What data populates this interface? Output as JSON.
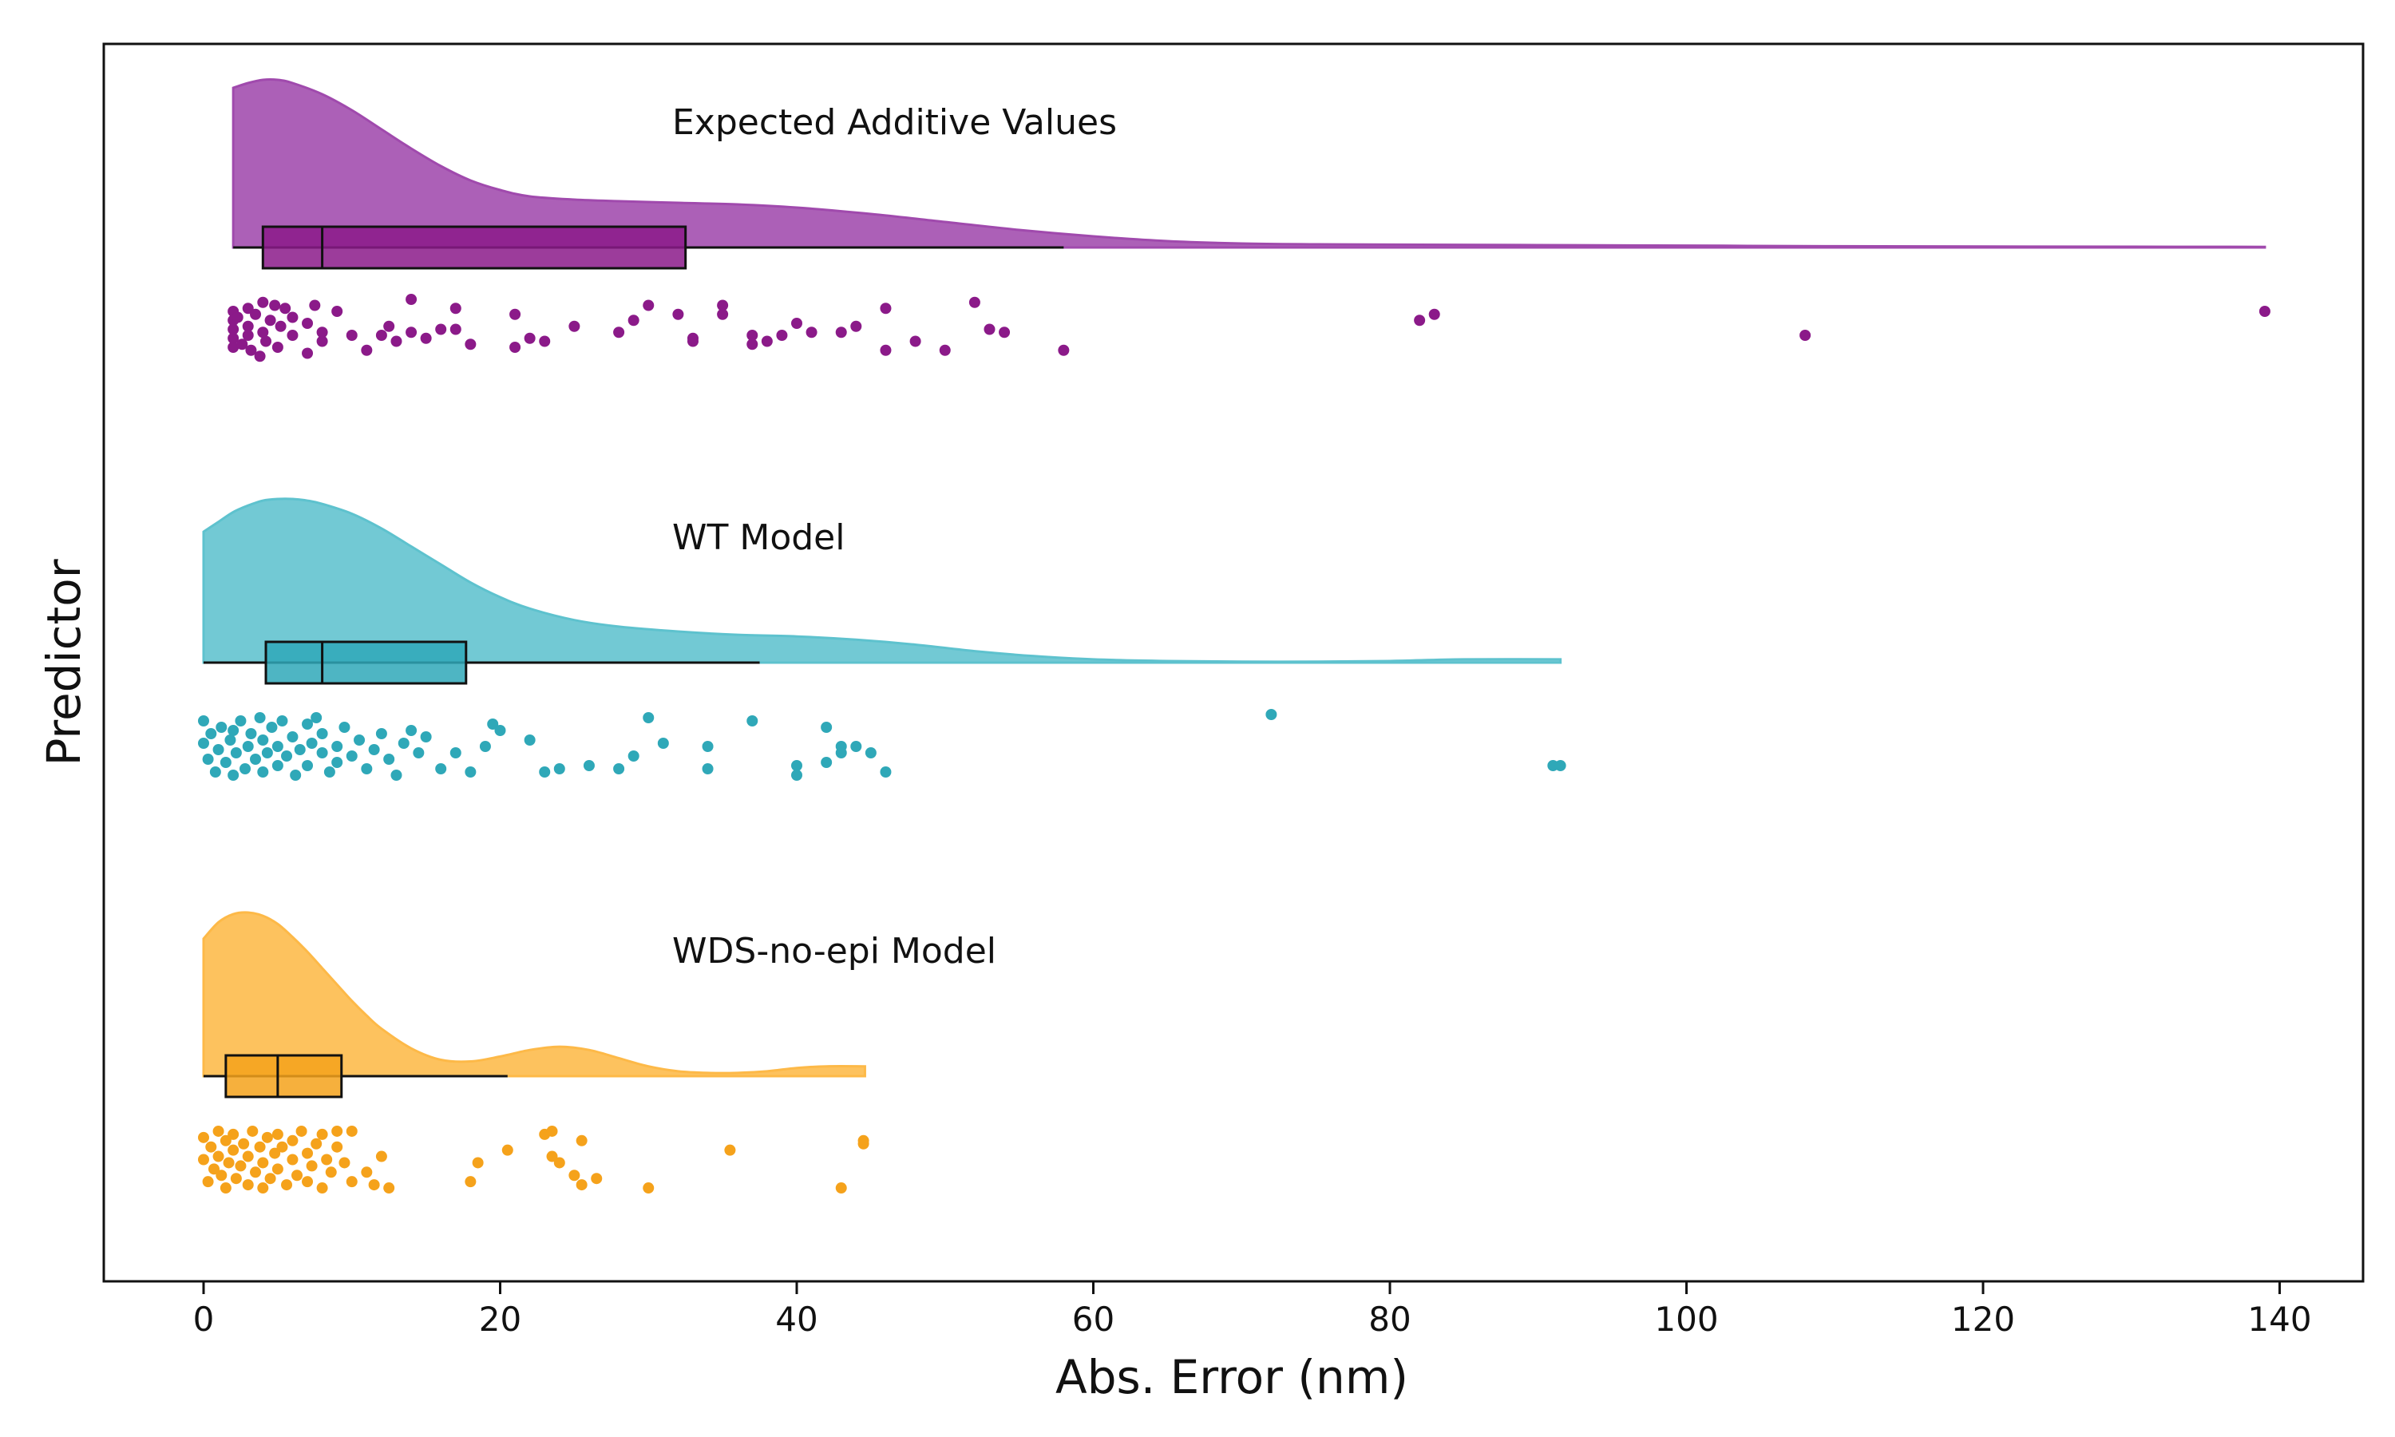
{
  "chart_data": {
    "type": "raincloud",
    "xlabel": "Abs. Error (nm)",
    "ylabel": "Predictor",
    "xlim": [
      -7,
      146
    ],
    "xticks": [
      0,
      20,
      40,
      60,
      80,
      100,
      120,
      140
    ],
    "grid": false,
    "series": [
      {
        "name": "Expected Additive Values",
        "color": "#8B1A89",
        "fill_color": "#A04AAD",
        "box": {
          "whisker_low": 2,
          "q1": 4,
          "median": 8,
          "q3": 32.5,
          "whisker_high": 58
        },
        "density": {
          "x": [
            2,
            3,
            4,
            5,
            6,
            8,
            10,
            12,
            14,
            16,
            18,
            20,
            22,
            25,
            28,
            32,
            36,
            40,
            45,
            50,
            55,
            60,
            65,
            70,
            75,
            80,
            90,
            100,
            110,
            120,
            130,
            139
          ],
          "y": [
            1.0,
            1.03,
            1.05,
            1.05,
            1.03,
            0.96,
            0.86,
            0.74,
            0.62,
            0.51,
            0.42,
            0.36,
            0.32,
            0.3,
            0.29,
            0.28,
            0.27,
            0.25,
            0.21,
            0.16,
            0.11,
            0.07,
            0.04,
            0.025,
            0.02,
            0.018,
            0.015,
            0.012,
            0.008,
            0.006,
            0.005,
            0.004
          ]
        },
        "points": [
          [
            2,
            0.2
          ],
          [
            2,
            0.35
          ],
          [
            2,
            0.5
          ],
          [
            2,
            0.65
          ],
          [
            2,
            0.8
          ],
          [
            2.3,
            0.3
          ],
          [
            2.6,
            0.75
          ],
          [
            3,
            0.15
          ],
          [
            3,
            0.45
          ],
          [
            3,
            0.6
          ],
          [
            3.2,
            0.85
          ],
          [
            3.5,
            0.25
          ],
          [
            3.8,
            0.95
          ],
          [
            4,
            0.05
          ],
          [
            4,
            0.55
          ],
          [
            4.2,
            0.7
          ],
          [
            4.5,
            0.35
          ],
          [
            4.8,
            0.1
          ],
          [
            5,
            0.8
          ],
          [
            5.2,
            0.45
          ],
          [
            5.5,
            0.15
          ],
          [
            6,
            0.6
          ],
          [
            6,
            0.3
          ],
          [
            7,
            0.9
          ],
          [
            7,
            0.4
          ],
          [
            7.5,
            0.1
          ],
          [
            8,
            0.7
          ],
          [
            8,
            0.55
          ],
          [
            9,
            0.2
          ],
          [
            10,
            0.6
          ],
          [
            11,
            0.85
          ],
          [
            12,
            0.6
          ],
          [
            12.5,
            0.45
          ],
          [
            13,
            0.7
          ],
          [
            14,
            0.0
          ],
          [
            14,
            0.55
          ],
          [
            15,
            0.65
          ],
          [
            16,
            0.5
          ],
          [
            17,
            0.15
          ],
          [
            17,
            0.5
          ],
          [
            18,
            0.75
          ],
          [
            21,
            0.8
          ],
          [
            21,
            0.25
          ],
          [
            22,
            0.65
          ],
          [
            23,
            0.7
          ],
          [
            25,
            0.45
          ],
          [
            28,
            0.55
          ],
          [
            29,
            0.35
          ],
          [
            30,
            0.1
          ],
          [
            32,
            0.25
          ],
          [
            33,
            0.7
          ],
          [
            33,
            0.65
          ],
          [
            35,
            0.1
          ],
          [
            35,
            0.25
          ],
          [
            37,
            0.6
          ],
          [
            37,
            0.75
          ],
          [
            38,
            0.7
          ],
          [
            39,
            0.6
          ],
          [
            40,
            0.4
          ],
          [
            41,
            0.55
          ],
          [
            43,
            0.55
          ],
          [
            44,
            0.45
          ],
          [
            46,
            0.15
          ],
          [
            46,
            0.85
          ],
          [
            48,
            0.7
          ],
          [
            50,
            0.85
          ],
          [
            52,
            0.05
          ],
          [
            53,
            0.5
          ],
          [
            54,
            0.55
          ],
          [
            58,
            0.85
          ],
          [
            82,
            0.35
          ],
          [
            83,
            0.25
          ],
          [
            108,
            0.6
          ],
          [
            139,
            0.2
          ]
        ]
      },
      {
        "name": "WT Model",
        "color": "#2FA8B8",
        "fill_color": "#5EC2CE",
        "box": {
          "whisker_low": 0,
          "q1": 4.2,
          "median": 8,
          "q3": 17.7,
          "whisker_high": 37.5
        },
        "density": {
          "x": [
            0,
            1,
            2,
            3,
            4,
            5,
            6,
            7,
            8,
            10,
            12,
            14,
            16,
            18,
            20,
            22,
            25,
            28,
            32,
            36,
            40,
            44,
            48,
            52,
            56,
            60,
            65,
            70,
            75,
            80,
            85,
            91.5
          ],
          "y": [
            0.8,
            0.86,
            0.92,
            0.96,
            0.99,
            1.0,
            1.0,
            0.99,
            0.97,
            0.91,
            0.82,
            0.71,
            0.6,
            0.49,
            0.4,
            0.33,
            0.26,
            0.22,
            0.19,
            0.17,
            0.16,
            0.14,
            0.11,
            0.07,
            0.04,
            0.02,
            0.01,
            0.006,
            0.006,
            0.01,
            0.02,
            0.02
          ]
        },
        "points": [
          [
            0,
            0.1
          ],
          [
            0,
            0.45
          ],
          [
            0.3,
            0.7
          ],
          [
            0.5,
            0.3
          ],
          [
            0.8,
            0.9
          ],
          [
            1,
            0.55
          ],
          [
            1.2,
            0.2
          ],
          [
            1.5,
            0.75
          ],
          [
            1.8,
            0.4
          ],
          [
            2,
            0.95
          ],
          [
            2,
            0.25
          ],
          [
            2.2,
            0.6
          ],
          [
            2.5,
            0.1
          ],
          [
            2.8,
            0.85
          ],
          [
            3,
            0.5
          ],
          [
            3.2,
            0.3
          ],
          [
            3.5,
            0.7
          ],
          [
            3.8,
            0.05
          ],
          [
            4,
            0.9
          ],
          [
            4,
            0.4
          ],
          [
            4.3,
            0.6
          ],
          [
            4.6,
            0.2
          ],
          [
            5,
            0.8
          ],
          [
            5,
            0.5
          ],
          [
            5.3,
            0.1
          ],
          [
            5.6,
            0.65
          ],
          [
            6,
            0.35
          ],
          [
            6.2,
            0.95
          ],
          [
            6.5,
            0.55
          ],
          [
            7,
            0.15
          ],
          [
            7,
            0.8
          ],
          [
            7.3,
            0.45
          ],
          [
            7.6,
            0.05
          ],
          [
            8,
            0.6
          ],
          [
            8,
            0.3
          ],
          [
            8.5,
            0.9
          ],
          [
            9,
            0.5
          ],
          [
            9,
            0.75
          ],
          [
            9.5,
            0.2
          ],
          [
            10,
            0.65
          ],
          [
            10.5,
            0.4
          ],
          [
            11,
            0.85
          ],
          [
            11.5,
            0.55
          ],
          [
            12,
            0.3
          ],
          [
            12.5,
            0.7
          ],
          [
            13,
            0.95
          ],
          [
            13.5,
            0.45
          ],
          [
            14,
            0.25
          ],
          [
            14.5,
            0.6
          ],
          [
            15,
            0.35
          ],
          [
            16,
            0.85
          ],
          [
            17,
            0.6
          ],
          [
            18,
            0.9
          ],
          [
            19,
            0.5
          ],
          [
            19.5,
            0.15
          ],
          [
            20,
            0.25
          ],
          [
            22,
            0.4
          ],
          [
            23,
            0.9
          ],
          [
            24,
            0.85
          ],
          [
            26,
            0.8
          ],
          [
            28,
            0.85
          ],
          [
            29,
            0.65
          ],
          [
            30,
            0.05
          ],
          [
            31,
            0.45
          ],
          [
            34,
            0.85
          ],
          [
            34,
            0.5
          ],
          [
            37,
            0.1
          ],
          [
            40,
            0.95
          ],
          [
            40,
            0.8
          ],
          [
            42,
            0.2
          ],
          [
            42,
            0.75
          ],
          [
            43,
            0.5
          ],
          [
            43,
            0.6
          ],
          [
            44,
            0.5
          ],
          [
            45,
            0.6
          ],
          [
            46,
            0.9
          ],
          [
            72,
            0.0
          ],
          [
            91,
            0.8
          ],
          [
            91.5,
            0.8
          ]
        ]
      },
      {
        "name": "WDS-no-epi Model",
        "color": "#F5A21B",
        "fill_color": "#FDB948",
        "box": {
          "whisker_low": 0,
          "q1": 1.5,
          "median": 5,
          "q3": 9.3,
          "whisker_high": 20.5
        },
        "density": {
          "x": [
            0,
            1,
            2,
            3,
            4,
            5,
            6,
            7,
            8,
            9,
            10,
            11,
            12,
            14,
            16,
            18,
            20,
            22,
            24,
            26,
            28,
            30,
            32,
            34,
            36,
            38,
            40,
            42,
            44.6
          ],
          "y": [
            0.84,
            0.94,
            0.99,
            1.0,
            0.98,
            0.93,
            0.85,
            0.76,
            0.66,
            0.56,
            0.46,
            0.37,
            0.29,
            0.17,
            0.1,
            0.09,
            0.12,
            0.16,
            0.18,
            0.16,
            0.11,
            0.06,
            0.03,
            0.02,
            0.02,
            0.03,
            0.05,
            0.06,
            0.06
          ]
        },
        "points": [
          [
            0,
            0.15
          ],
          [
            0,
            0.5
          ],
          [
            0.3,
            0.85
          ],
          [
            0.5,
            0.3
          ],
          [
            0.7,
            0.65
          ],
          [
            1,
            0.05
          ],
          [
            1,
            0.45
          ],
          [
            1.2,
            0.75
          ],
          [
            1.5,
            0.2
          ],
          [
            1.5,
            0.95
          ],
          [
            1.7,
            0.55
          ],
          [
            2,
            0.1
          ],
          [
            2,
            0.35
          ],
          [
            2.2,
            0.8
          ],
          [
            2.5,
            0.6
          ],
          [
            2.7,
            0.25
          ],
          [
            3,
            0.9
          ],
          [
            3,
            0.45
          ],
          [
            3.3,
            0.05
          ],
          [
            3.5,
            0.7
          ],
          [
            3.8,
            0.3
          ],
          [
            4,
            0.55
          ],
          [
            4,
            0.95
          ],
          [
            4.3,
            0.15
          ],
          [
            4.5,
            0.8
          ],
          [
            4.8,
            0.4
          ],
          [
            5,
            0.65
          ],
          [
            5,
            0.1
          ],
          [
            5.3,
            0.3
          ],
          [
            5.6,
            0.9
          ],
          [
            6,
            0.5
          ],
          [
            6,
            0.2
          ],
          [
            6.3,
            0.75
          ],
          [
            6.6,
            0.05
          ],
          [
            7,
            0.4
          ],
          [
            7,
            0.85
          ],
          [
            7.3,
            0.6
          ],
          [
            7.6,
            0.25
          ],
          [
            8,
            0.95
          ],
          [
            8,
            0.1
          ],
          [
            8.3,
            0.5
          ],
          [
            8.6,
            0.7
          ],
          [
            9,
            0.3
          ],
          [
            9,
            0.05
          ],
          [
            9.5,
            0.55
          ],
          [
            10,
            0.85
          ],
          [
            10,
            0.05
          ],
          [
            11,
            0.7
          ],
          [
            11.5,
            0.9
          ],
          [
            12,
            0.45
          ],
          [
            12.5,
            0.95
          ],
          [
            18,
            0.85
          ],
          [
            18.5,
            0.55
          ],
          [
            20.5,
            0.35
          ],
          [
            23,
            0.1
          ],
          [
            23.5,
            0.05
          ],
          [
            23.5,
            0.45
          ],
          [
            24,
            0.55
          ],
          [
            25,
            0.75
          ],
          [
            25.5,
            0.9
          ],
          [
            25.5,
            0.2
          ],
          [
            26.5,
            0.8
          ],
          [
            30,
            0.95
          ],
          [
            35.5,
            0.35
          ],
          [
            43,
            0.95
          ],
          [
            44.5,
            0.2
          ],
          [
            44.5,
            0.25
          ]
        ]
      }
    ]
  }
}
